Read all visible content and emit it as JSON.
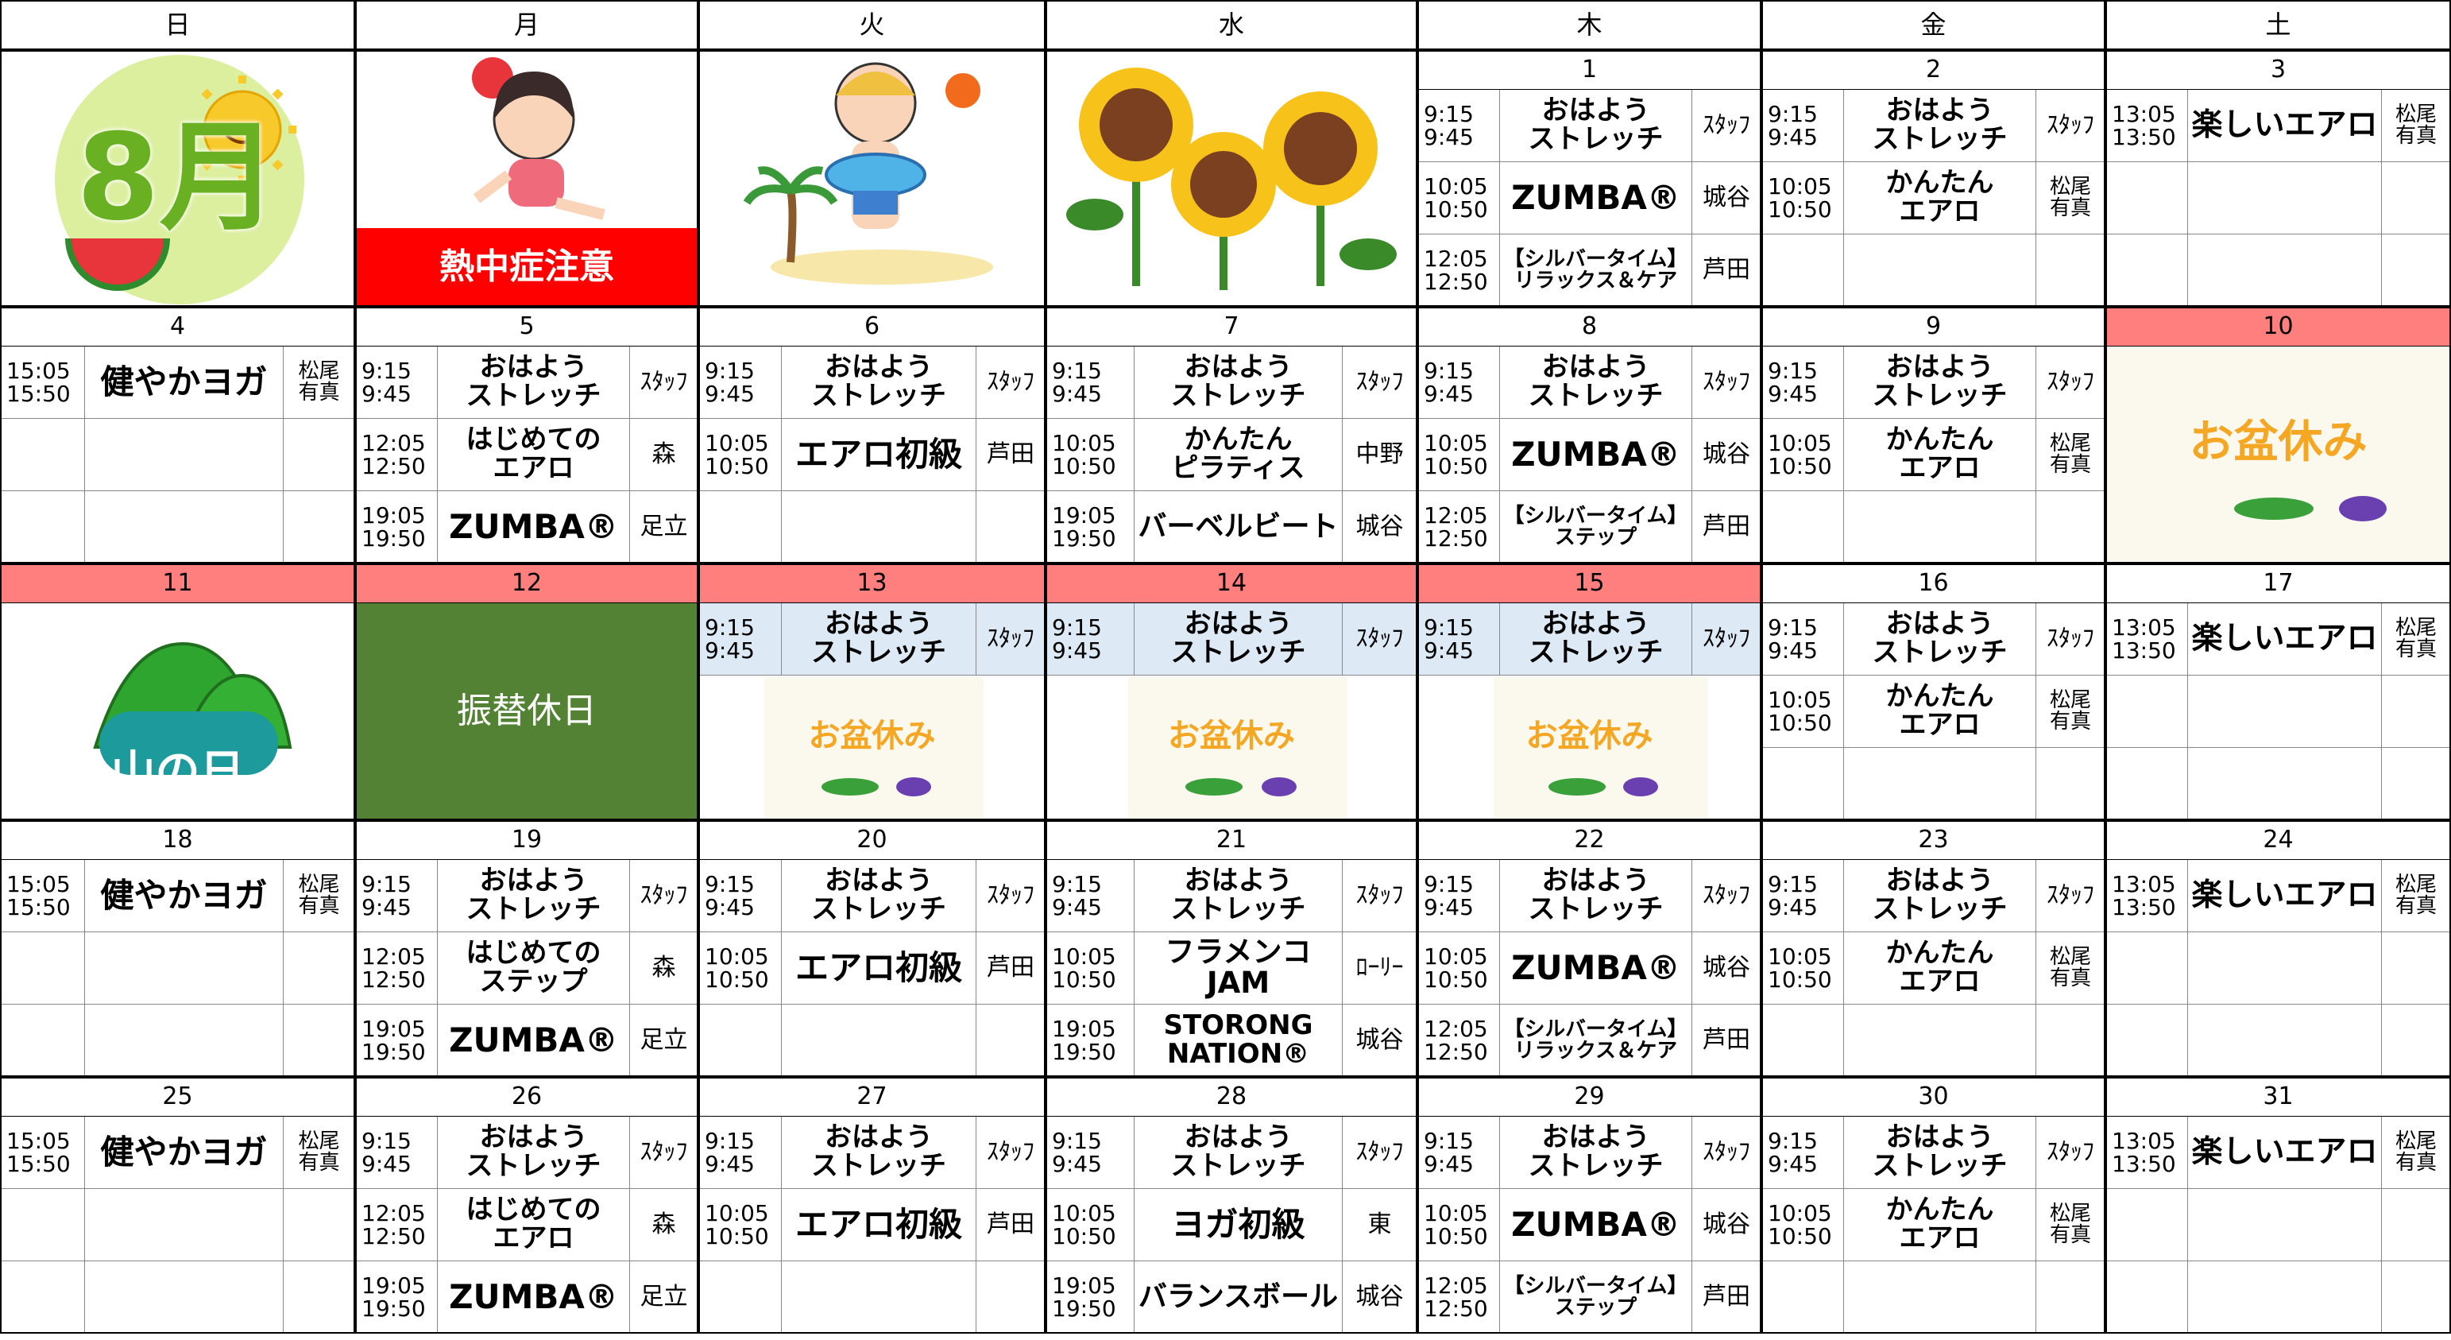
{
  "weekdays": [
    "日",
    "月",
    "火",
    "水",
    "木",
    "金",
    "土"
  ],
  "holiday_color": "#ff7f7f",
  "weeks": [
    {
      "days": [
        {
          "banner": "8月",
          "banner_color": "#6ab023"
        },
        {
          "banner": "熱中症注意",
          "banner_color": "#ffffff",
          "banner_fill": "#ff0000"
        },
        {},
        {},
        {
          "date": 1,
          "slots": [
            {
              "start": "9:15",
              "end": "9:45",
              "class": "おはよう\nストレッチ",
              "instructor": "ｽﾀｯﾌ"
            },
            {
              "start": "10:05",
              "end": "10:50",
              "class": "ZUMBA®",
              "instructor": "城谷"
            },
            {
              "start": "12:05",
              "end": "12:50",
              "class": "【シルバータイム】\nリラックス＆ケア",
              "instructor": "芦田"
            }
          ]
        },
        {
          "date": 2,
          "slots": [
            {
              "start": "9:15",
              "end": "9:45",
              "class": "おはよう\nストレッチ",
              "instructor": "ｽﾀｯﾌ"
            },
            {
              "start": "10:05",
              "end": "10:50",
              "class": "かんたん\nエアロ",
              "instructor": "松尾\n有真"
            },
            null
          ]
        },
        {
          "date": 3,
          "slots": [
            {
              "start": "13:05",
              "end": "13:50",
              "class": "楽しいエアロ",
              "instructor": "松尾\n有真"
            },
            null,
            null
          ]
        }
      ]
    },
    {
      "days": [
        {
          "date": 4,
          "slots": [
            {
              "start": "15:05",
              "end": "15:50",
              "class": "健やかヨガ",
              "instructor": "松尾\n有真"
            },
            null,
            null
          ]
        },
        {
          "date": 5,
          "slots": [
            {
              "start": "9:15",
              "end": "9:45",
              "class": "おはよう\nストレッチ",
              "instructor": "ｽﾀｯﾌ"
            },
            {
              "start": "12:05",
              "end": "12:50",
              "class": "はじめての\nエアロ",
              "instructor": "森"
            },
            {
              "start": "19:05",
              "end": "19:50",
              "class": "ZUMBA®",
              "instructor": "足立"
            }
          ]
        },
        {
          "date": 6,
          "slots": [
            {
              "start": "9:15",
              "end": "9:45",
              "class": "おはよう\nストレッチ",
              "instructor": "ｽﾀｯﾌ"
            },
            {
              "start": "10:05",
              "end": "10:50",
              "class": "エアロ初級",
              "instructor": "芦田"
            },
            null
          ]
        },
        {
          "date": 7,
          "slots": [
            {
              "start": "9:15",
              "end": "9:45",
              "class": "おはよう\nストレッチ",
              "instructor": "ｽﾀｯﾌ"
            },
            {
              "start": "10:05",
              "end": "10:50",
              "class": "かんたん\nピラティス",
              "instructor": "中野"
            },
            {
              "start": "19:05",
              "end": "19:50",
              "class": "バーベルビート",
              "instructor": "城谷"
            }
          ]
        },
        {
          "date": 8,
          "slots": [
            {
              "start": "9:15",
              "end": "9:45",
              "class": "おはよう\nストレッチ",
              "instructor": "ｽﾀｯﾌ"
            },
            {
              "start": "10:05",
              "end": "10:50",
              "class": "ZUMBA®",
              "instructor": "城谷"
            },
            {
              "start": "12:05",
              "end": "12:50",
              "class": "【シルバータイム】\nステップ",
              "instructor": "芦田"
            }
          ]
        },
        {
          "date": 9,
          "slots": [
            {
              "start": "9:15",
              "end": "9:45",
              "class": "おはよう\nストレッチ",
              "instructor": "ｽﾀｯﾌ"
            },
            {
              "start": "10:05",
              "end": "10:50",
              "class": "かんたん\nエアロ",
              "instructor": "松尾\n有真"
            },
            null
          ]
        },
        {
          "date": 10,
          "holiday": true,
          "banner": "お盆休み",
          "banner_color": "#f5a623",
          "slots": [
            null,
            null,
            null
          ]
        }
      ]
    },
    {
      "days": [
        {
          "date": 11,
          "holiday": true,
          "banner": "山の日",
          "banner_color": "#ffffff",
          "slots": [
            null,
            null,
            null
          ]
        },
        {
          "date": 12,
          "holiday": true,
          "banner": "振替休日",
          "banner_color": "#ffffff",
          "banner_fill": "#548235",
          "slots": [
            null,
            null,
            null
          ]
        },
        {
          "date": 13,
          "holiday": true,
          "slot_fill": "#dde9f5",
          "banner": "お盆休み",
          "banner_color": "#f5a623",
          "slots": [
            {
              "start": "9:15",
              "end": "9:45",
              "class": "おはよう\nストレッチ",
              "instructor": "ｽﾀｯﾌ"
            },
            null,
            null
          ]
        },
        {
          "date": 14,
          "holiday": true,
          "slot_fill": "#dde9f5",
          "banner": "お盆休み",
          "banner_color": "#f5a623",
          "slots": [
            {
              "start": "9:15",
              "end": "9:45",
              "class": "おはよう\nストレッチ",
              "instructor": "ｽﾀｯﾌ"
            },
            null,
            null
          ]
        },
        {
          "date": 15,
          "holiday": true,
          "slot_fill": "#dde9f5",
          "banner": "お盆休み",
          "banner_color": "#f5a623",
          "slots": [
            {
              "start": "9:15",
              "end": "9:45",
              "class": "おはよう\nストレッチ",
              "instructor": "ｽﾀｯﾌ"
            },
            null,
            null
          ]
        },
        {
          "date": 16,
          "slots": [
            {
              "start": "9:15",
              "end": "9:45",
              "class": "おはよう\nストレッチ",
              "instructor": "ｽﾀｯﾌ"
            },
            {
              "start": "10:05",
              "end": "10:50",
              "class": "かんたん\nエアロ",
              "instructor": "松尾\n有真"
            },
            null
          ]
        },
        {
          "date": 17,
          "slots": [
            {
              "start": "13:05",
              "end": "13:50",
              "class": "楽しいエアロ",
              "instructor": "松尾\n有真"
            },
            null,
            null
          ]
        }
      ]
    },
    {
      "days": [
        {
          "date": 18,
          "slots": [
            {
              "start": "15:05",
              "end": "15:50",
              "class": "健やかヨガ",
              "instructor": "松尾\n有真"
            },
            null,
            null
          ]
        },
        {
          "date": 19,
          "slots": [
            {
              "start": "9:15",
              "end": "9:45",
              "class": "おはよう\nストレッチ",
              "instructor": "ｽﾀｯﾌ"
            },
            {
              "start": "12:05",
              "end": "12:50",
              "class": "はじめての\nステップ",
              "instructor": "森"
            },
            {
              "start": "19:05",
              "end": "19:50",
              "class": "ZUMBA®",
              "instructor": "足立"
            }
          ]
        },
        {
          "date": 20,
          "slots": [
            {
              "start": "9:15",
              "end": "9:45",
              "class": "おはよう\nストレッチ",
              "instructor": "ｽﾀｯﾌ"
            },
            {
              "start": "10:05",
              "end": "10:50",
              "class": "エアロ初級",
              "instructor": "芦田"
            },
            null
          ]
        },
        {
          "date": 21,
          "slots": [
            {
              "start": "9:15",
              "end": "9:45",
              "class": "おはよう\nストレッチ",
              "instructor": "ｽﾀｯﾌ"
            },
            {
              "start": "10:05",
              "end": "10:50",
              "class": "フラメンコJAM",
              "instructor": "ﾛｰﾘｰ"
            },
            {
              "start": "19:05",
              "end": "19:50",
              "class": "STORONG\nNATION®",
              "instructor": "城谷"
            }
          ]
        },
        {
          "date": 22,
          "slots": [
            {
              "start": "9:15",
              "end": "9:45",
              "class": "おはよう\nストレッチ",
              "instructor": "ｽﾀｯﾌ"
            },
            {
              "start": "10:05",
              "end": "10:50",
              "class": "ZUMBA®",
              "instructor": "城谷"
            },
            {
              "start": "12:05",
              "end": "12:50",
              "class": "【シルバータイム】\nリラックス＆ケア",
              "instructor": "芦田"
            }
          ]
        },
        {
          "date": 23,
          "slots": [
            {
              "start": "9:15",
              "end": "9:45",
              "class": "おはよう\nストレッチ",
              "instructor": "ｽﾀｯﾌ"
            },
            {
              "start": "10:05",
              "end": "10:50",
              "class": "かんたん\nエアロ",
              "instructor": "松尾\n有真"
            },
            null
          ]
        },
        {
          "date": 24,
          "slots": [
            {
              "start": "13:05",
              "end": "13:50",
              "class": "楽しいエアロ",
              "instructor": "松尾\n有真"
            },
            null,
            null
          ]
        }
      ]
    },
    {
      "days": [
        {
          "date": 25,
          "slots": [
            {
              "start": "15:05",
              "end": "15:50",
              "class": "健やかヨガ",
              "instructor": "松尾\n有真"
            },
            null,
            null
          ]
        },
        {
          "date": 26,
          "slots": [
            {
              "start": "9:15",
              "end": "9:45",
              "class": "おはよう\nストレッチ",
              "instructor": "ｽﾀｯﾌ"
            },
            {
              "start": "12:05",
              "end": "12:50",
              "class": "はじめての\nエアロ",
              "instructor": "森"
            },
            {
              "start": "19:05",
              "end": "19:50",
              "class": "ZUMBA®",
              "instructor": "足立"
            }
          ]
        },
        {
          "date": 27,
          "slots": [
            {
              "start": "9:15",
              "end": "9:45",
              "class": "おはよう\nストレッチ",
              "instructor": "ｽﾀｯﾌ"
            },
            {
              "start": "10:05",
              "end": "10:50",
              "class": "エアロ初級",
              "instructor": "芦田"
            },
            null
          ]
        },
        {
          "date": 28,
          "slots": [
            {
              "start": "9:15",
              "end": "9:45",
              "class": "おはよう\nストレッチ",
              "instructor": "ｽﾀｯﾌ"
            },
            {
              "start": "10:05",
              "end": "10:50",
              "class": "ヨガ初級",
              "instructor": "東"
            },
            {
              "start": "19:05",
              "end": "19:50",
              "class": "バランスボール",
              "instructor": "城谷"
            }
          ]
        },
        {
          "date": 29,
          "slots": [
            {
              "start": "9:15",
              "end": "9:45",
              "class": "おはよう\nストレッチ",
              "instructor": "ｽﾀｯﾌ"
            },
            {
              "start": "10:05",
              "end": "10:50",
              "class": "ZUMBA®",
              "instructor": "城谷"
            },
            {
              "start": "12:05",
              "end": "12:50",
              "class": "【シルバータイム】\nステップ",
              "instructor": "芦田"
            }
          ]
        },
        {
          "date": 30,
          "slots": [
            {
              "start": "9:15",
              "end": "9:45",
              "class": "おはよう\nストレッチ",
              "instructor": "ｽﾀｯﾌ"
            },
            {
              "start": "10:05",
              "end": "10:50",
              "class": "かんたん\nエアロ",
              "instructor": "松尾\n有真"
            },
            null
          ]
        },
        {
          "date": 31,
          "slots": [
            {
              "start": "13:05",
              "end": "13:50",
              "class": "楽しいエアロ",
              "instructor": "松尾\n有真"
            },
            null,
            null
          ]
        }
      ]
    }
  ]
}
